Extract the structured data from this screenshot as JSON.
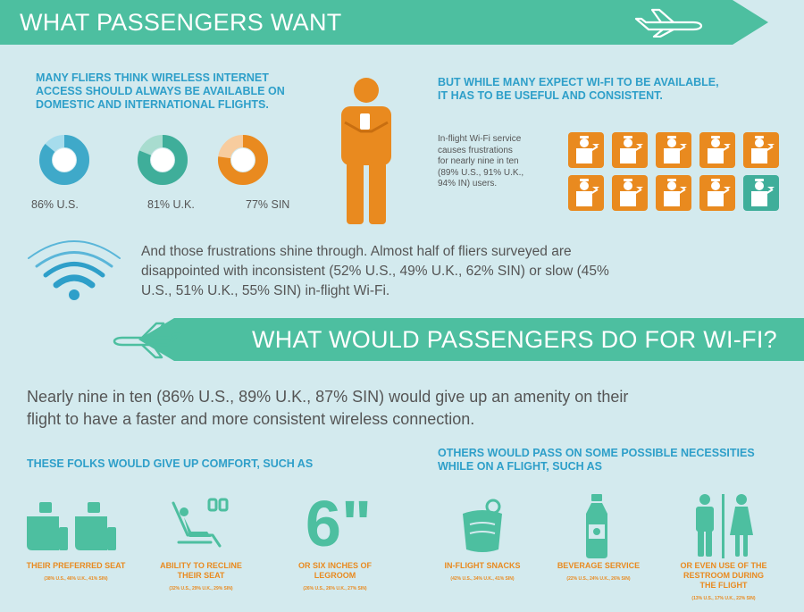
{
  "colors": {
    "teal": "#4dbfa0",
    "blue": "#2e9fc9",
    "orange": "#e98a1f",
    "background": "#d3eaee",
    "text": "#555555"
  },
  "section1": {
    "title": "WHAT PASSENGERS WANT",
    "left_heading": [
      "MANY FLIERS THINK WIRELESS INTERNET",
      "ACCESS SHOULD ALWAYS BE AVAILABLE ON",
      "DOMESTIC AND INTERNATIONAL FLIGHTS."
    ],
    "donuts": [
      {
        "label": "86% U.S.",
        "percent": 86,
        "color": "#3fa9c9",
        "light": "#a6dcec"
      },
      {
        "label": "81% U.K.",
        "percent": 81,
        "color": "#3fae9a",
        "light": "#a8dccf"
      },
      {
        "label": "77% SIN",
        "percent": 77,
        "color": "#e98a1f",
        "light": "#f7cc9e"
      }
    ],
    "right_heading": [
      "BUT WHILE MANY EXPECT WI-FI TO BE AVAILABLE,",
      "IT HAS TO BE USEFUL AND CONSISTENT."
    ],
    "right_text": [
      "In-flight Wi-Fi service",
      "causes frustrations",
      "for nearly nine in ten",
      "(89% U.S., 91% U.K.,",
      "94% IN) users."
    ],
    "steward_total": 10,
    "steward_highlighted": 9,
    "frustration_text": [
      "And those frustrations shine through. Almost half of fliers surveyed are",
      "disappointed with inconsistent (52% U.S., 49% U.K., 62% SIN) or slow (45%",
      "U.S., 51% U.K., 55% SIN) in-flight Wi-Fi."
    ]
  },
  "section2": {
    "title": "WHAT WOULD PASSENGERS DO FOR WI-FI?",
    "intro": [
      "Nearly nine in ten (86% U.S., 89% U.K., 87% SIN) would give up an amenity on their",
      "flight to have a faster and more consistent wireless connection."
    ],
    "comfort_heading": "THESE FOLKS WOULD GIVE UP COMFORT, SUCH AS",
    "necessities_heading": [
      "OTHERS WOULD PASS ON SOME POSSIBLE NECESSITIES",
      "WHILE ON A FLIGHT, SUCH AS"
    ],
    "comfort_items": [
      {
        "label": [
          "THEIR PREFERRED SEAT"
        ],
        "stat": "(38% U.S., 46% U.K., 41% SIN)",
        "icon": "seat-icon"
      },
      {
        "label": [
          "ABILITY TO RECLINE",
          "THEIR SEAT"
        ],
        "stat": "(32% U.S., 29% U.K., 29% SIN)",
        "icon": "recline-icon"
      },
      {
        "label": [
          "OR SIX INCHES OF",
          "LEGROOM"
        ],
        "stat": "(26% U.S., 26% U.K., 27% SIN)",
        "icon": "legroom-icon",
        "big": "6\""
      }
    ],
    "necessity_items": [
      {
        "label": [
          "IN-FLIGHT SNACKS"
        ],
        "stat": "(42% U.S., 34% U.K., 41% SIN)",
        "icon": "snack-icon"
      },
      {
        "label": [
          "BEVERAGE SERVICE"
        ],
        "stat": "(22% U.S., 24% U.K., 26% SIN)",
        "icon": "bottle-icon"
      },
      {
        "label": [
          "OR EVEN USE OF THE",
          "RESTROOM DURING",
          "THE FLIGHT"
        ],
        "stat": "(13% U.S., 17% U.K., 22% SIN)",
        "icon": "restroom-icon"
      }
    ]
  }
}
